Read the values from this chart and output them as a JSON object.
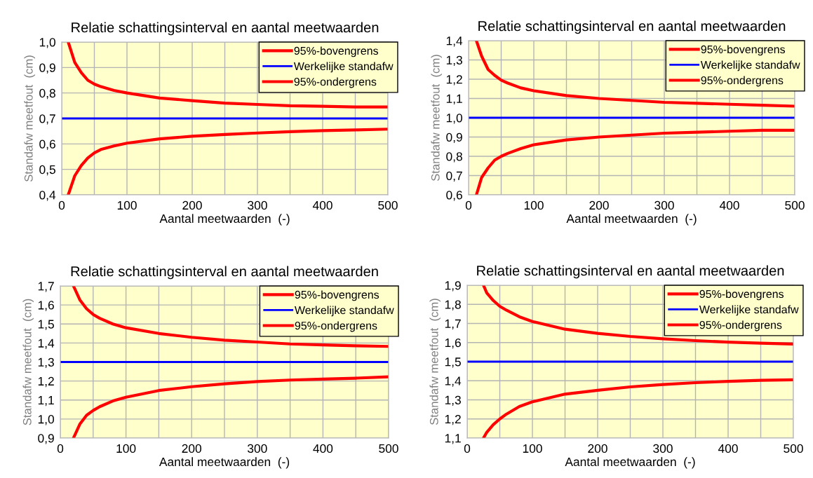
{
  "chart_data": [
    {
      "type": "line",
      "title": "Relatie schattingsinterval en aantal meetwaarden",
      "xlabel": "Aantal meetwaarden  (-)",
      "ylabel": "Standafw meetfout  (cm)",
      "legend": "top right",
      "grid": true,
      "line_style": "solid",
      "marker": "none",
      "xlim": [
        0,
        500
      ],
      "xticks": [
        0,
        {
          "value": 50,
          "label": null
        },
        100,
        {
          "value": 150,
          "label": null
        },
        200,
        {
          "value": 250,
          "label": null
        },
        300,
        {
          "value": 350,
          "label": null
        },
        400,
        {
          "value": 450,
          "label": null
        },
        500
      ],
      "ylim": [
        0.4,
        1.0
      ],
      "yticks": [
        {
          "value": 0.4,
          "label": "0,4"
        },
        {
          "value": 0.5,
          "label": "0,5"
        },
        {
          "value": 0.6,
          "label": "0,6"
        },
        {
          "value": 0.7,
          "label": "0,7"
        },
        {
          "value": 0.8,
          "label": "0,8"
        },
        {
          "value": 0.9,
          "label": "0,9"
        },
        {
          "value": 1.0,
          "label": "1,0"
        }
      ],
      "series": [
        {
          "name": "95%-bovengrens",
          "color": "#ff0000",
          "x": [
            10,
            20,
            30,
            40,
            50,
            60,
            80,
            100,
            150,
            200,
            250,
            300,
            350,
            400,
            450,
            500
          ],
          "values": [
            1.0,
            0.92,
            0.88,
            0.85,
            0.835,
            0.825,
            0.81,
            0.8,
            0.78,
            0.77,
            0.76,
            0.755,
            0.75,
            0.748,
            0.745,
            0.745
          ]
        },
        {
          "name": "Werkelijke standafw",
          "color": "#0000ff",
          "x": [
            0,
            500
          ],
          "values": [
            0.7,
            0.7
          ]
        },
        {
          "name": "95%-ondergrens",
          "color": "#ff0000",
          "x": [
            10,
            20,
            30,
            40,
            50,
            60,
            80,
            100,
            150,
            200,
            250,
            300,
            350,
            400,
            450,
            500
          ],
          "values": [
            0.4,
            0.475,
            0.515,
            0.545,
            0.565,
            0.578,
            0.592,
            0.603,
            0.62,
            0.63,
            0.637,
            0.643,
            0.648,
            0.652,
            0.655,
            0.658
          ]
        }
      ]
    },
    {
      "type": "line",
      "title": "Relatie schattingsinterval en aantal meetwaarden",
      "xlabel": "Aantal meetwaarden  (-)",
      "ylabel": "Standafw meetfout  (cm)",
      "legend": "top right",
      "grid": true,
      "line_style": "solid",
      "marker": "none",
      "xlim": [
        0,
        500
      ],
      "xticks": [
        0,
        {
          "value": 50,
          "label": null
        },
        100,
        {
          "value": 150,
          "label": null
        },
        200,
        {
          "value": 250,
          "label": null
        },
        300,
        {
          "value": 350,
          "label": null
        },
        400,
        {
          "value": 450,
          "label": null
        },
        500
      ],
      "ylim": [
        0.6,
        1.4
      ],
      "yticks": [
        {
          "value": 0.6,
          "label": "0,6"
        },
        {
          "value": 0.7,
          "label": "0,7"
        },
        {
          "value": 0.8,
          "label": "0,8"
        },
        {
          "value": 0.9,
          "label": "0,9"
        },
        {
          "value": 1.0,
          "label": "1,0"
        },
        {
          "value": 1.1,
          "label": "1,1"
        },
        {
          "value": 1.2,
          "label": "1,2"
        },
        {
          "value": 1.3,
          "label": "1,3"
        },
        {
          "value": 1.4,
          "label": "1,4"
        }
      ],
      "series": [
        {
          "name": "95%-bovengrens",
          "color": "#ff0000",
          "x": [
            12,
            20,
            30,
            40,
            50,
            60,
            80,
            100,
            150,
            200,
            250,
            300,
            350,
            400,
            450,
            500
          ],
          "values": [
            1.4,
            1.32,
            1.25,
            1.22,
            1.195,
            1.18,
            1.155,
            1.14,
            1.115,
            1.1,
            1.09,
            1.08,
            1.075,
            1.07,
            1.065,
            1.06
          ]
        },
        {
          "name": "Werkelijke standafw",
          "color": "#0000ff",
          "x": [
            0,
            500
          ],
          "values": [
            1.0,
            1.0
          ]
        },
        {
          "name": "95%-ondergrens",
          "color": "#ff0000",
          "x": [
            12,
            20,
            30,
            40,
            50,
            60,
            80,
            100,
            150,
            200,
            250,
            300,
            350,
            400,
            450,
            500
          ],
          "values": [
            0.6,
            0.69,
            0.74,
            0.78,
            0.8,
            0.815,
            0.84,
            0.86,
            0.885,
            0.9,
            0.91,
            0.92,
            0.925,
            0.93,
            0.935,
            0.935
          ]
        }
      ]
    },
    {
      "type": "line",
      "title": "Relatie schattingsinterval en aantal meetwaarden",
      "xlabel": "Aantal meetwaarden  (-)",
      "ylabel": "Standafw meetfout  (cm)",
      "legend": "top right",
      "grid": true,
      "line_style": "solid",
      "marker": "none",
      "xlim": [
        0,
        500
      ],
      "xticks": [
        0,
        {
          "value": 50,
          "label": null
        },
        100,
        {
          "value": 150,
          "label": null
        },
        200,
        {
          "value": 250,
          "label": null
        },
        300,
        {
          "value": 350,
          "label": null
        },
        400,
        {
          "value": 450,
          "label": null
        },
        500
      ],
      "ylim": [
        0.9,
        1.7
      ],
      "yticks": [
        {
          "value": 0.9,
          "label": "0,9"
        },
        {
          "value": 1.0,
          "label": "1,0"
        },
        {
          "value": 1.1,
          "label": "1,1"
        },
        {
          "value": 1.2,
          "label": "1,2"
        },
        {
          "value": 1.3,
          "label": "1,3"
        },
        {
          "value": 1.4,
          "label": "1,4"
        },
        {
          "value": 1.5,
          "label": "1,5"
        },
        {
          "value": 1.6,
          "label": "1,6"
        },
        {
          "value": 1.7,
          "label": "1,7"
        }
      ],
      "series": [
        {
          "name": "95%-bovengrens",
          "color": "#ff0000",
          "x": [
            20,
            30,
            40,
            50,
            60,
            80,
            100,
            150,
            200,
            250,
            300,
            350,
            400,
            450,
            500
          ],
          "values": [
            1.7,
            1.625,
            1.58,
            1.55,
            1.53,
            1.5,
            1.48,
            1.45,
            1.43,
            1.415,
            1.405,
            1.395,
            1.39,
            1.385,
            1.382
          ]
        },
        {
          "name": "Werkelijke standafw",
          "color": "#0000ff",
          "x": [
            0,
            500
          ],
          "values": [
            1.3,
            1.3
          ]
        },
        {
          "name": "95%-ondergrens",
          "color": "#ff0000",
          "x": [
            20,
            30,
            40,
            50,
            60,
            80,
            100,
            150,
            200,
            250,
            300,
            350,
            400,
            450,
            500
          ],
          "values": [
            0.9,
            0.975,
            1.02,
            1.045,
            1.065,
            1.095,
            1.115,
            1.15,
            1.17,
            1.185,
            1.197,
            1.205,
            1.21,
            1.215,
            1.222
          ]
        }
      ]
    },
    {
      "type": "line",
      "title": "Relatie schattingsinterval en aantal meetwaarden",
      "xlabel": "Aantal meetwaarden  (-)",
      "ylabel": "Standafw meetfout  (cm)",
      "legend": "top right",
      "grid": true,
      "line_style": "solid",
      "marker": "none",
      "xlim": [
        0,
        500
      ],
      "xticks": [
        0,
        {
          "value": 50,
          "label": null
        },
        100,
        {
          "value": 150,
          "label": null
        },
        200,
        {
          "value": 250,
          "label": null
        },
        300,
        {
          "value": 350,
          "label": null
        },
        400,
        {
          "value": 450,
          "label": null
        },
        500
      ],
      "ylim": [
        1.1,
        1.9
      ],
      "yticks": [
        {
          "value": 1.1,
          "label": "1,1"
        },
        {
          "value": 1.2,
          "label": "1,2"
        },
        {
          "value": 1.3,
          "label": "1,3"
        },
        {
          "value": 1.4,
          "label": "1,4"
        },
        {
          "value": 1.5,
          "label": "1,5"
        },
        {
          "value": 1.6,
          "label": "1,6"
        },
        {
          "value": 1.7,
          "label": "1,7"
        },
        {
          "value": 1.8,
          "label": "1,8"
        },
        {
          "value": 1.9,
          "label": "1,9"
        }
      ],
      "series": [
        {
          "name": "95%-bovengrens",
          "color": "#ff0000",
          "x": [
            25,
            30,
            40,
            50,
            60,
            80,
            100,
            150,
            200,
            250,
            300,
            350,
            400,
            450,
            500
          ],
          "values": [
            1.9,
            1.86,
            1.82,
            1.79,
            1.77,
            1.735,
            1.71,
            1.67,
            1.648,
            1.632,
            1.62,
            1.61,
            1.602,
            1.597,
            1.592
          ]
        },
        {
          "name": "Werkelijke standafw",
          "color": "#0000ff",
          "x": [
            0,
            500
          ],
          "values": [
            1.5,
            1.5
          ]
        },
        {
          "name": "95%-ondergrens",
          "color": "#ff0000",
          "x": [
            25,
            30,
            40,
            50,
            60,
            80,
            100,
            150,
            200,
            250,
            300,
            350,
            400,
            450,
            500
          ],
          "values": [
            1.1,
            1.13,
            1.17,
            1.2,
            1.225,
            1.265,
            1.29,
            1.33,
            1.35,
            1.368,
            1.38,
            1.39,
            1.397,
            1.402,
            1.405
          ]
        }
      ]
    }
  ]
}
